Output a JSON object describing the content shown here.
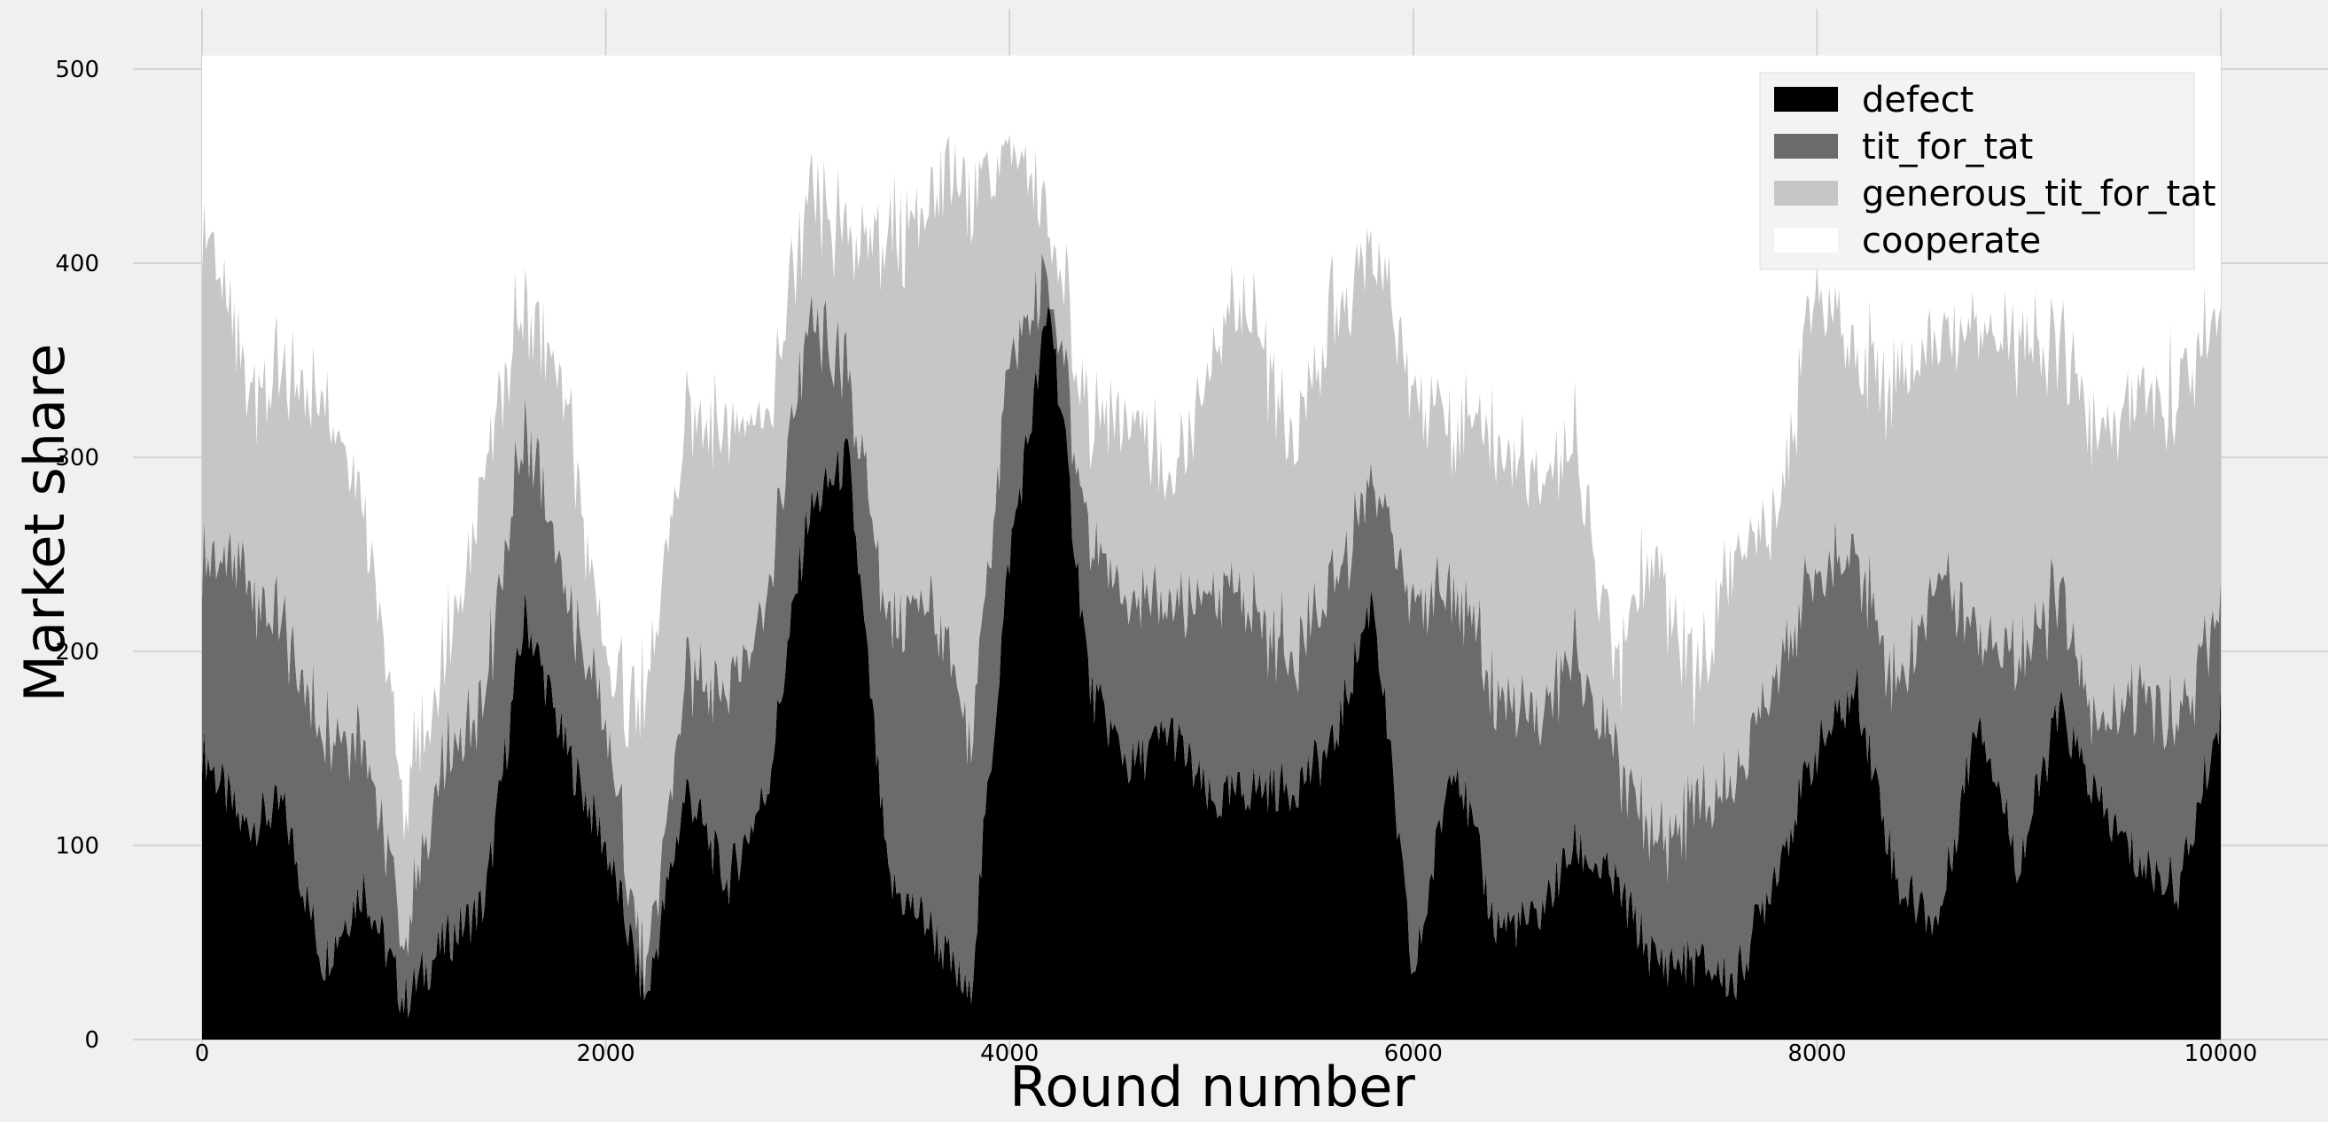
{
  "chart_data": {
    "type": "area",
    "stacked": true,
    "title": "",
    "xlabel": "Round number",
    "ylabel": "Market share",
    "xlim": [
      0,
      10000
    ],
    "ylim": [
      0,
      507
    ],
    "xticks": [
      "0",
      "2000",
      "4000",
      "6000",
      "8000",
      "10000"
    ],
    "yticks": [
      "0",
      "100",
      "200",
      "300",
      "400",
      "500"
    ],
    "grid": true,
    "legend_position": "top-right",
    "total": 507,
    "x": [
      0,
      200,
      400,
      600,
      800,
      1000,
      1200,
      1400,
      1600,
      1800,
      2000,
      2200,
      2400,
      2600,
      2800,
      3000,
      3200,
      3400,
      3600,
      3800,
      4000,
      4200,
      4400,
      4600,
      4800,
      5000,
      5200,
      5400,
      5600,
      5800,
      6000,
      6200,
      6400,
      6600,
      6800,
      7000,
      7200,
      7400,
      7600,
      7800,
      8000,
      8200,
      8400,
      8600,
      8800,
      9000,
      9200,
      9400,
      9600,
      9800,
      10000
    ],
    "series": [
      {
        "name": "defect",
        "color": "#000000",
        "values": [
          150,
          110,
          120,
          40,
          80,
          20,
          50,
          70,
          220,
          150,
          100,
          20,
          130,
          80,
          130,
          270,
          300,
          80,
          60,
          20,
          250,
          380,
          180,
          140,
          160,
          120,
          130,
          130,
          150,
          230,
          30,
          150,
          60,
          60,
          100,
          80,
          40,
          40,
          30,
          90,
          150,
          180,
          80,
          60,
          170,
          90,
          170,
          120,
          90,
          80,
          170
        ]
      },
      {
        "name": "tit_for_tat",
        "color": "#6b6b6b",
        "values": [
          100,
          130,
          90,
          120,
          80,
          30,
          90,
          110,
          100,
          80,
          60,
          10,
          60,
          100,
          100,
          100,
          40,
          130,
          170,
          130,
          100,
          10,
          70,
          90,
          60,
          110,
          90,
          70,
          80,
          60,
          190,
          90,
          120,
          100,
          100,
          60,
          60,
          80,
          100,
          110,
          90,
          70,
          100,
          180,
          40,
          110,
          60,
          40,
          90,
          80,
          60
        ]
      },
      {
        "name": "generous_tit_for_tat",
        "color": "#c6c6c6",
        "values": [
          180,
          100,
          130,
          170,
          120,
          70,
          50,
          120,
          60,
          100,
          30,
          140,
          130,
          140,
          90,
          60,
          70,
          200,
          200,
          290,
          110,
          30,
          60,
          100,
          60,
          120,
          160,
          110,
          140,
          120,
          110,
          80,
          130,
          120,
          110,
          50,
          150,
          60,
          120,
          80,
          150,
          100,
          160,
          120,
          160,
          160,
          130,
          150,
          150,
          170,
          150
        ]
      },
      {
        "name": "cooperate",
        "color": "#ffffff",
        "values": [
          77,
          167,
          167,
          177,
          227,
          387,
          317,
          207,
          127,
          177,
          317,
          337,
          187,
          187,
          187,
          77,
          97,
          97,
          77,
          67,
          47,
          87,
          197,
          177,
          227,
          157,
          127,
          197,
          137,
          97,
          177,
          187,
          197,
          227,
          197,
          317,
          257,
          327,
          257,
          227,
          117,
          157,
          167,
          147,
          137,
          147,
          147,
          197,
          177,
          177,
          127
        ]
      }
    ]
  }
}
